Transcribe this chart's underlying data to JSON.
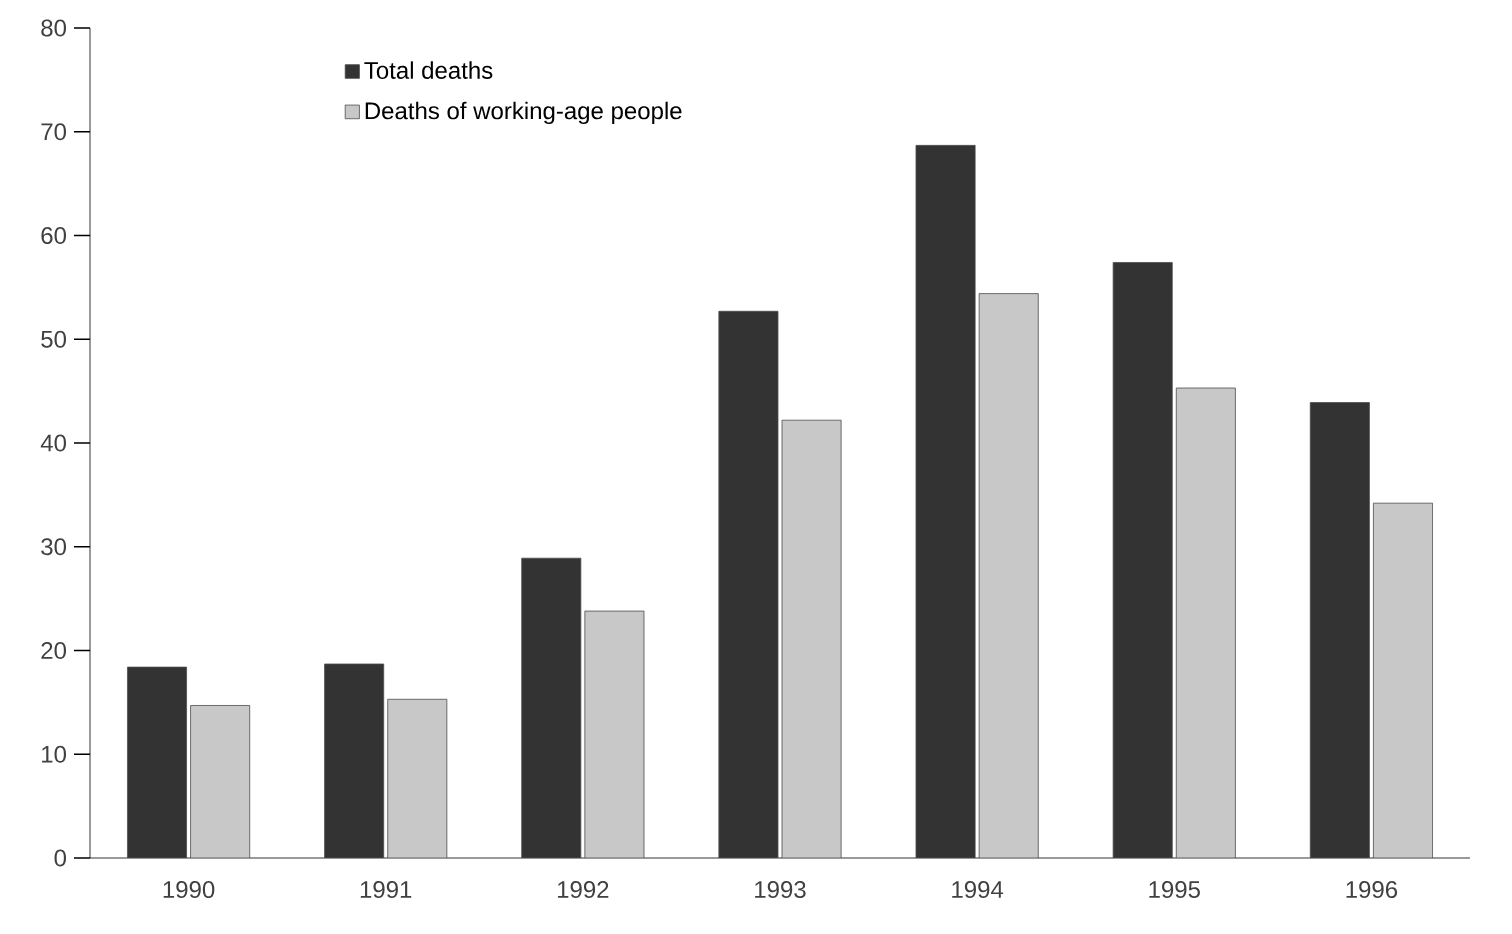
{
  "chart_data": {
    "type": "bar",
    "categories": [
      "1990",
      "1991",
      "1992",
      "1993",
      "1994",
      "1995",
      "1996"
    ],
    "series": [
      {
        "name": "Total deaths",
        "color": "#333333",
        "values": [
          18.4,
          18.7,
          28.9,
          52.7,
          68.7,
          57.4,
          43.9
        ]
      },
      {
        "name": "Deaths of working-age people",
        "color": "#c8c8c8",
        "values": [
          14.7,
          15.3,
          23.8,
          42.2,
          54.4,
          45.3,
          34.2
        ]
      }
    ],
    "ylim": [
      0,
      80
    ],
    "yticks": [
      0,
      10,
      20,
      30,
      40,
      50,
      60,
      70,
      80
    ],
    "legend": "top left",
    "grid": false
  }
}
